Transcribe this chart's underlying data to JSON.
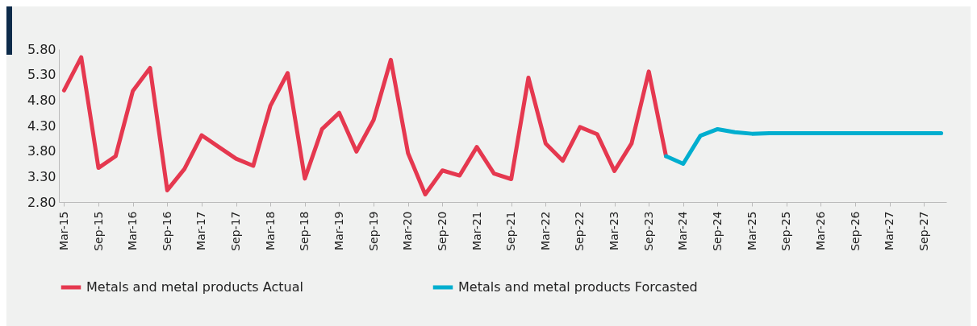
{
  "chart_data": {
    "type": "line",
    "categories": [
      "Mar-15",
      null,
      "Sep-15",
      null,
      "Mar-16",
      null,
      "Sep-16",
      null,
      "Mar-17",
      null,
      "Sep-17",
      null,
      "Mar-18",
      null,
      "Sep-18",
      null,
      "Mar-19",
      null,
      "Sep-19",
      null,
      "Mar-20",
      null,
      "Sep-20",
      null,
      "Mar-21",
      null,
      "Sep-21",
      null,
      "Mar-22",
      null,
      "Sep-22",
      null,
      "Mar-23",
      null,
      "Sep-23",
      null,
      "Mar-24",
      null,
      "Sep-24",
      null,
      "Mar-25",
      null,
      "Sep-25",
      null,
      "Mar-26",
      null,
      "Sep-26",
      null,
      "Mar-27",
      null,
      "Sep-27",
      null
    ],
    "series": [
      {
        "name": "Metals and metal products Actual",
        "color": "#e5384f",
        "values": [
          4.99,
          5.64,
          3.47,
          3.7,
          4.98,
          5.43,
          3.03,
          3.45,
          4.11,
          3.88,
          3.65,
          3.51,
          4.69,
          5.33,
          3.26,
          4.23,
          4.55,
          3.79,
          4.41,
          5.59,
          3.76,
          2.95,
          3.42,
          3.32,
          3.88,
          3.36,
          3.25,
          5.24,
          3.95,
          3.61,
          4.27,
          4.13,
          3.41,
          3.95,
          5.36,
          3.7,
          null,
          null,
          null,
          null,
          null,
          null,
          null,
          null,
          null,
          null,
          null,
          null,
          null,
          null,
          null,
          null
        ]
      },
      {
        "name": "Metals and metal products Forcasted",
        "color": "#00aecf",
        "values": [
          null,
          null,
          null,
          null,
          null,
          null,
          null,
          null,
          null,
          null,
          null,
          null,
          null,
          null,
          null,
          null,
          null,
          null,
          null,
          null,
          null,
          null,
          null,
          null,
          null,
          null,
          null,
          null,
          null,
          null,
          null,
          null,
          null,
          null,
          null,
          3.7,
          3.55,
          4.1,
          4.23,
          4.17,
          4.14,
          4.15,
          4.15,
          4.15,
          4.15,
          4.15,
          4.15,
          4.15,
          4.15,
          4.15,
          4.15,
          4.15
        ]
      }
    ],
    "ylim": [
      2.8,
      5.8
    ],
    "yticks": [
      {
        "value": 2.8,
        "label": "2.80"
      },
      {
        "value": 3.3,
        "label": "3.30"
      },
      {
        "value": 3.8,
        "label": "3.80"
      },
      {
        "value": 4.3,
        "label": "4.30"
      },
      {
        "value": 4.8,
        "label": "4.80"
      },
      {
        "value": 5.3,
        "label": "5.30"
      },
      {
        "value": 5.8,
        "label": "5.80"
      }
    ],
    "legend": "bottom"
  }
}
